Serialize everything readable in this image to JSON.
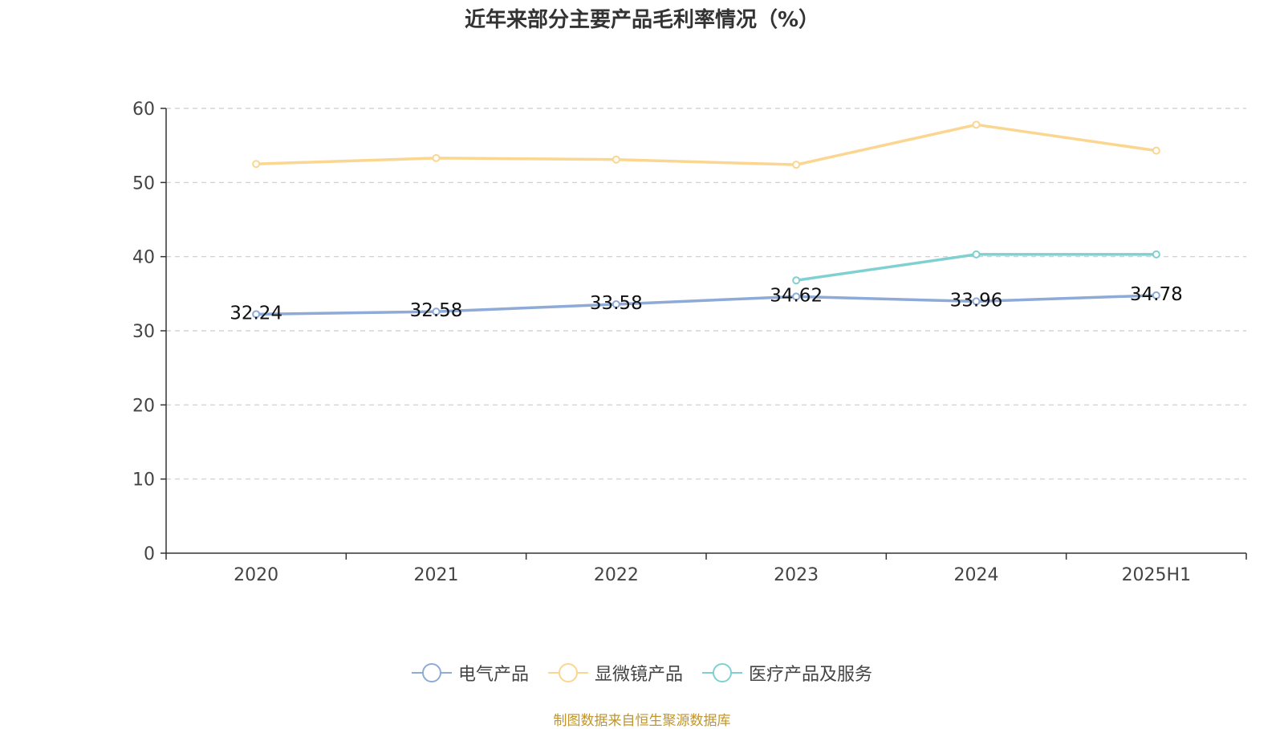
{
  "chart_data": {
    "type": "line",
    "title": "近年来部分主要产品毛利率情况（%）",
    "categories": [
      "2020",
      "2021",
      "2022",
      "2023",
      "2024",
      "2025H1"
    ],
    "yticks": [
      "0",
      "10",
      "20",
      "30",
      "40",
      "50",
      "60"
    ],
    "ylim": [
      0,
      60
    ],
    "grid": true,
    "legend_position": "bottom",
    "series": [
      {
        "name": "电气产品",
        "color": "#8eaad6",
        "values": [
          32.24,
          32.58,
          33.58,
          34.62,
          33.96,
          34.78
        ],
        "labels": [
          "32.24",
          "32.58",
          "33.58",
          "34.62",
          "33.96",
          "34.78"
        ]
      },
      {
        "name": "显微镜产品",
        "color": "#fbd690",
        "values": [
          52.5,
          53.3,
          53.1,
          52.4,
          57.8,
          54.3
        ]
      },
      {
        "name": "医疗产品及服务",
        "color": "#80d0d2",
        "values": [
          null,
          null,
          null,
          36.8,
          40.3,
          40.3
        ]
      }
    ],
    "source": "制图数据来自恒生聚源数据库",
    "source_color": "#c0952c"
  }
}
